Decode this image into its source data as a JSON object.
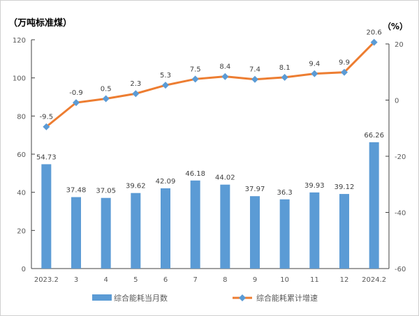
{
  "chart_data": {
    "type": "bar+line",
    "left_axis_label": "（万吨标准煤）",
    "right_axis_label": "（%）",
    "categories": [
      "2023.2",
      "3",
      "4",
      "5",
      "6",
      "7",
      "8",
      "9",
      "10",
      "11",
      "12",
      "2024.2"
    ],
    "left_ylim": [
      0,
      120
    ],
    "left_ticks": [
      0,
      20,
      40,
      60,
      80,
      100,
      120
    ],
    "right_ylim": [
      -60,
      20
    ],
    "right_ticks": [
      -60,
      -40,
      -20,
      0,
      20
    ],
    "series": [
      {
        "name": "综合能耗当月数",
        "type": "bar",
        "axis": "left",
        "color": "#5b9bd5",
        "values": [
          54.73,
          37.48,
          37.05,
          39.62,
          42.09,
          46.18,
          44.02,
          37.97,
          36.3,
          39.93,
          39.12,
          66.26
        ]
      },
      {
        "name": "综合能耗累计增速",
        "type": "line",
        "axis": "right",
        "color": "#ed7d31",
        "marker_color": "#5b9bd5",
        "values": [
          -9.5,
          -0.9,
          0.5,
          2.3,
          5.3,
          7.5,
          8.4,
          7.4,
          8.1,
          9.4,
          9.9,
          20.6
        ]
      }
    ],
    "legend_position": "bottom",
    "grid": false
  }
}
